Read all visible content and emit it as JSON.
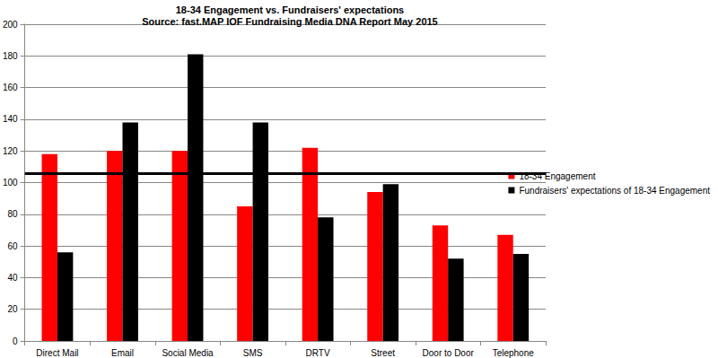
{
  "chart_data": {
    "type": "bar",
    "title": "18-34 Engagement vs. Fundraisers' expectations",
    "subtitle": "Source: fast.MAP IOF Fundraising Media DNA Report May 2015",
    "categories": [
      "Direct Mail",
      "Email",
      "Social Media",
      "SMS",
      "DRTV",
      "Street",
      "Door to Door",
      "Telephone"
    ],
    "series": [
      {
        "name": "18-34 Engagement",
        "color": "#ff0000",
        "values": [
          118,
          120,
          120,
          85,
          122,
          94,
          73,
          67
        ]
      },
      {
        "name": "Fundraisers' expectations of 18-34 Engagement",
        "color": "#000000",
        "values": [
          56,
          138,
          181,
          138,
          78,
          99,
          52,
          55
        ]
      }
    ],
    "reference_line": 106,
    "ylim": [
      0,
      200
    ],
    "yticks": [
      0,
      20,
      40,
      60,
      80,
      100,
      120,
      140,
      160,
      180,
      200
    ],
    "grid": true,
    "legend": "right"
  }
}
